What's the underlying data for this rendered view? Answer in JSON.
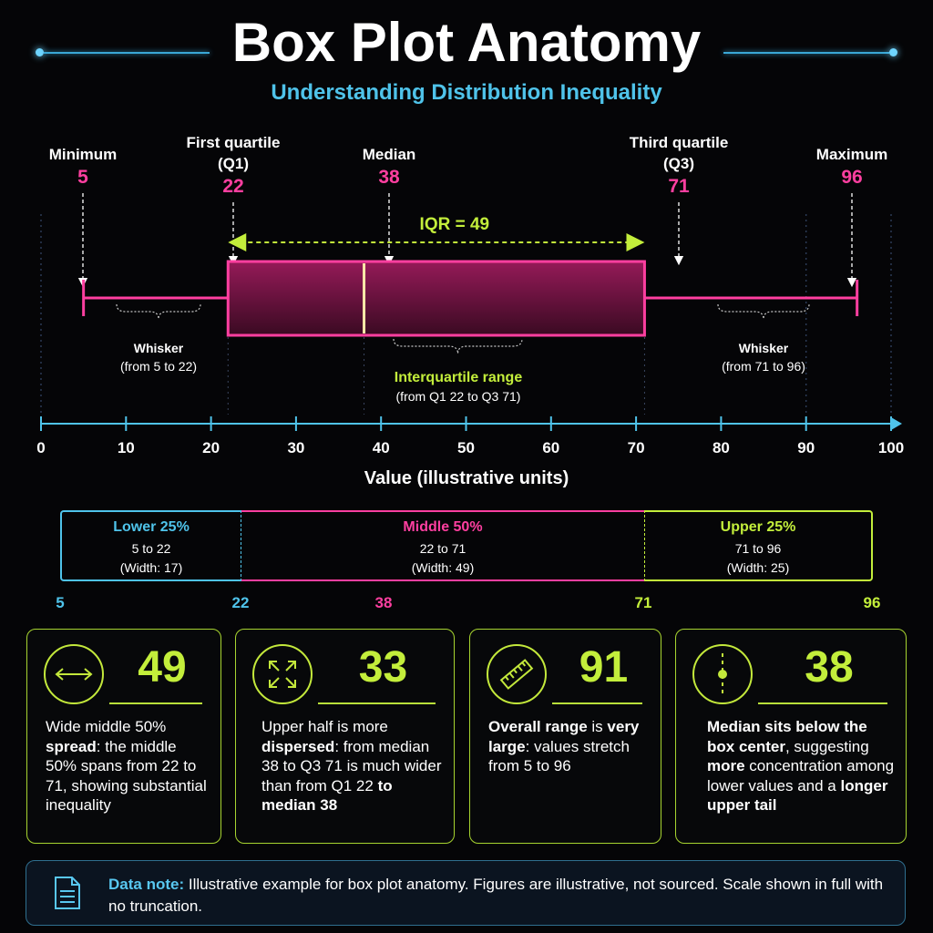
{
  "title": "Box Plot Anatomy",
  "subtitle": "Understanding Distribution Inequality",
  "colors": {
    "accent_pink": "#ff3fa0",
    "accent_cyan": "#4fc3ea",
    "accent_lime": "#c3ee3b",
    "box_fill": "#7a1244"
  },
  "chart_data": {
    "type": "box",
    "min": 5,
    "q1": 22,
    "median": 38,
    "q3": 71,
    "max": 96,
    "xlabel": "Value (illustrative units)",
    "xlim": [
      0,
      100
    ],
    "ticks": [
      0,
      10,
      20,
      30,
      40,
      50,
      60,
      70,
      80,
      90,
      100
    ],
    "grid": false,
    "iqr_label": "IQR = 49",
    "stat_labels": {
      "min": [
        "Minimum"
      ],
      "q1": [
        "First quartile",
        "(Q1)"
      ],
      "median": [
        "Median"
      ],
      "q3": [
        "Third quartile",
        "(Q3)"
      ],
      "max": [
        "Maximum"
      ]
    },
    "annotations": {
      "left_whisker": [
        "Whisker",
        "(from 5 to 22)"
      ],
      "right_whisker": [
        "Whisker",
        "(from 71 to 96)"
      ],
      "iqr": [
        "Interquartile range",
        "(from Q1 22 to Q3 71)"
      ]
    }
  },
  "segments": [
    {
      "title": "Lower 25%",
      "range": "5 to 22",
      "width": "(Width: 17)",
      "color": "#4fc3ea"
    },
    {
      "title": "Middle 50%",
      "range": "22 to 71",
      "width": "(Width: 49)",
      "color": "#ff3fa0"
    },
    {
      "title": "Upper 25%",
      "range": "71 to 96",
      "width": "(Width: 25)",
      "color": "#c3ee3b"
    }
  ],
  "segment_ticks": [
    "5",
    "22",
    "38",
    "71",
    "96"
  ],
  "cards": [
    {
      "icon": "double-arrow-icon",
      "number": "49",
      "html": "Wide middle 50% <b>spread</b>: the middle 50% spans from 22 to 71, showing substantial inequality"
    },
    {
      "icon": "expand-arrows-icon",
      "number": "33",
      "html": "Upper half is more <b>dispersed</b>: from median 38 to Q3 71 is much wider than from Q1 22 <b>to median 38</b>"
    },
    {
      "icon": "ruler-icon",
      "number": "91",
      "html": "<b>Overall range</b> is <b>very large</b>: values stretch from 5 to 96"
    },
    {
      "icon": "median-marker-icon",
      "number": "38",
      "html": "<b>Median sits below the box center</b>, suggesting <b>more</b> concentration among lower values and a <b>longer upper tail</b>"
    }
  ],
  "note": {
    "label": "Data note:",
    "text": "Illustrative example for box plot anatomy. Figures are illustrative, not sourced. Scale shown in full with no truncation."
  }
}
